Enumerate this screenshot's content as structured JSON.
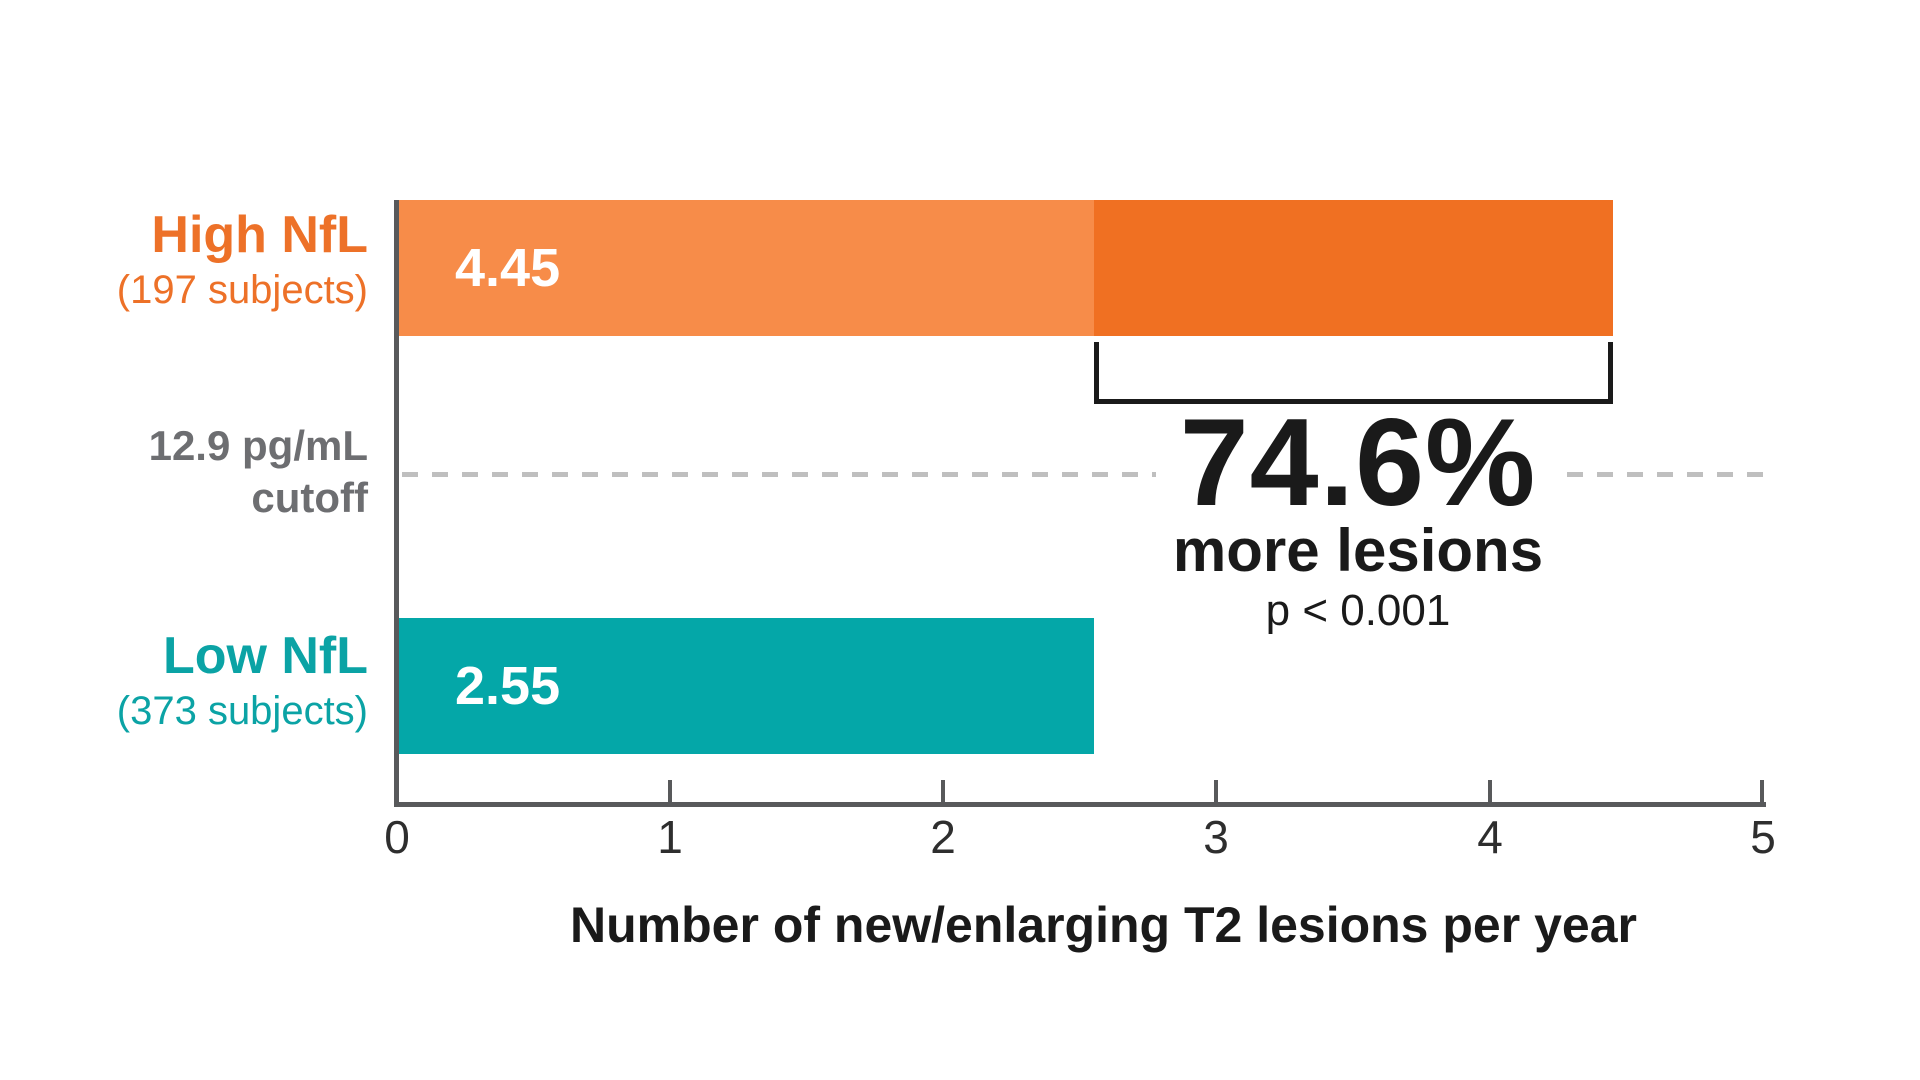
{
  "chart_data": {
    "type": "bar",
    "orientation": "horizontal",
    "categories": [
      "High NfL (197 subjects)",
      "Low NfL (373 subjects)"
    ],
    "values": [
      4.45,
      2.55
    ],
    "xlabel": "Number of new/enlarging T2 lesions per year",
    "xlim": [
      0,
      5
    ],
    "xticks": [
      0,
      1,
      2,
      3,
      4,
      5
    ],
    "grid": false,
    "annotations": [
      {
        "text": "74.6% more lesions, p < 0.001",
        "refers_to": "difference between 2.55 and 4.45"
      },
      {
        "text": "12.9 pg/mL cutoff",
        "refers_to": "dashed horizontal separator between bars"
      }
    ]
  },
  "bars": {
    "high": {
      "label": "High NfL",
      "subjects": "(197 subjects)",
      "value": "4.45"
    },
    "low": {
      "label": "Low NfL",
      "subjects": "(373 subjects)",
      "value": "2.55"
    }
  },
  "cutoff": {
    "line1": "12.9 pg/mL",
    "line2": "cutoff"
  },
  "annotation": {
    "percent": "74.6%",
    "more": "more lesions",
    "pvalue": "p < 0.001"
  },
  "axis": {
    "title": "Number of new/enlarging T2 lesions per year",
    "ticks": [
      "0",
      "1",
      "2",
      "3",
      "4",
      "5"
    ]
  },
  "colors": {
    "orange_bar_light": "#F78C49",
    "orange_bar_dark": "#F07022",
    "orange_text": "#ED7128",
    "teal_bar": "#04A7A8",
    "teal_text": "#0BA3A5",
    "gray_text": "#6D6E71",
    "axis_gray": "#58595B",
    "dash_gray": "#BFBFBF",
    "black_text": "#1A1A1A"
  }
}
